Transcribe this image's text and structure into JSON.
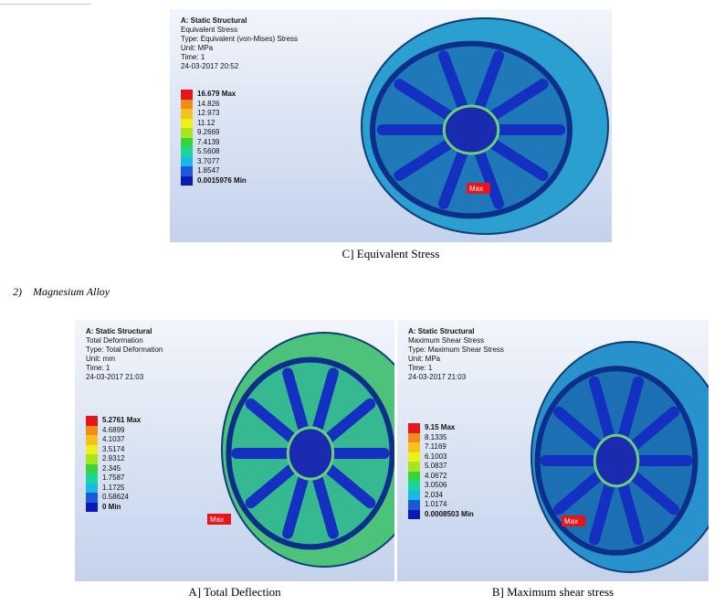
{
  "figures": [
    {
      "header": [
        "A: Static Structural",
        "Equivalent Stress",
        "Type: Equivalent (von-Mises) Stress",
        "Unit: MPa",
        "Time: 1",
        "24-03-2017 20:52"
      ],
      "legend": [
        "16.679 Max",
        "14.826",
        "12.973",
        "11.12",
        "9.2669",
        "7.4139",
        "5.5608",
        "3.7077",
        "1.8547",
        "0.0015976 Min"
      ],
      "max_tag": "Max",
      "caption": "C] Equivalent Stress"
    },
    {
      "header": [
        "A: Static Structural",
        "Total Deformation",
        "Type: Total Deformation",
        "Unit: mm",
        "Time: 1",
        "24-03-2017 21:03"
      ],
      "legend": [
        "5.2761 Max",
        "4.6899",
        "4.1037",
        "3.5174",
        "2.9312",
        "2.345",
        "1.7587",
        "1.1725",
        "0.58624",
        "0 Min"
      ],
      "max_tag": "Max",
      "caption": "A] Total Deflection"
    },
    {
      "header": [
        "A: Static Structural",
        "Maximum Shear Stress",
        "Type: Maximum Shear Stress",
        "Unit: MPa",
        "Time: 1",
        "24-03-2017 21:03"
      ],
      "legend": [
        "9.15 Max",
        "8.1335",
        "7.1169",
        "6.1003",
        "5.0837",
        "4.0672",
        "3.0506",
        "2.034",
        "1.0174",
        "0.0008503 Min"
      ],
      "max_tag": "Max",
      "caption": "B] Maximum shear stress"
    }
  ],
  "section": {
    "number": "2)",
    "title": "Magnesium Alloy"
  }
}
